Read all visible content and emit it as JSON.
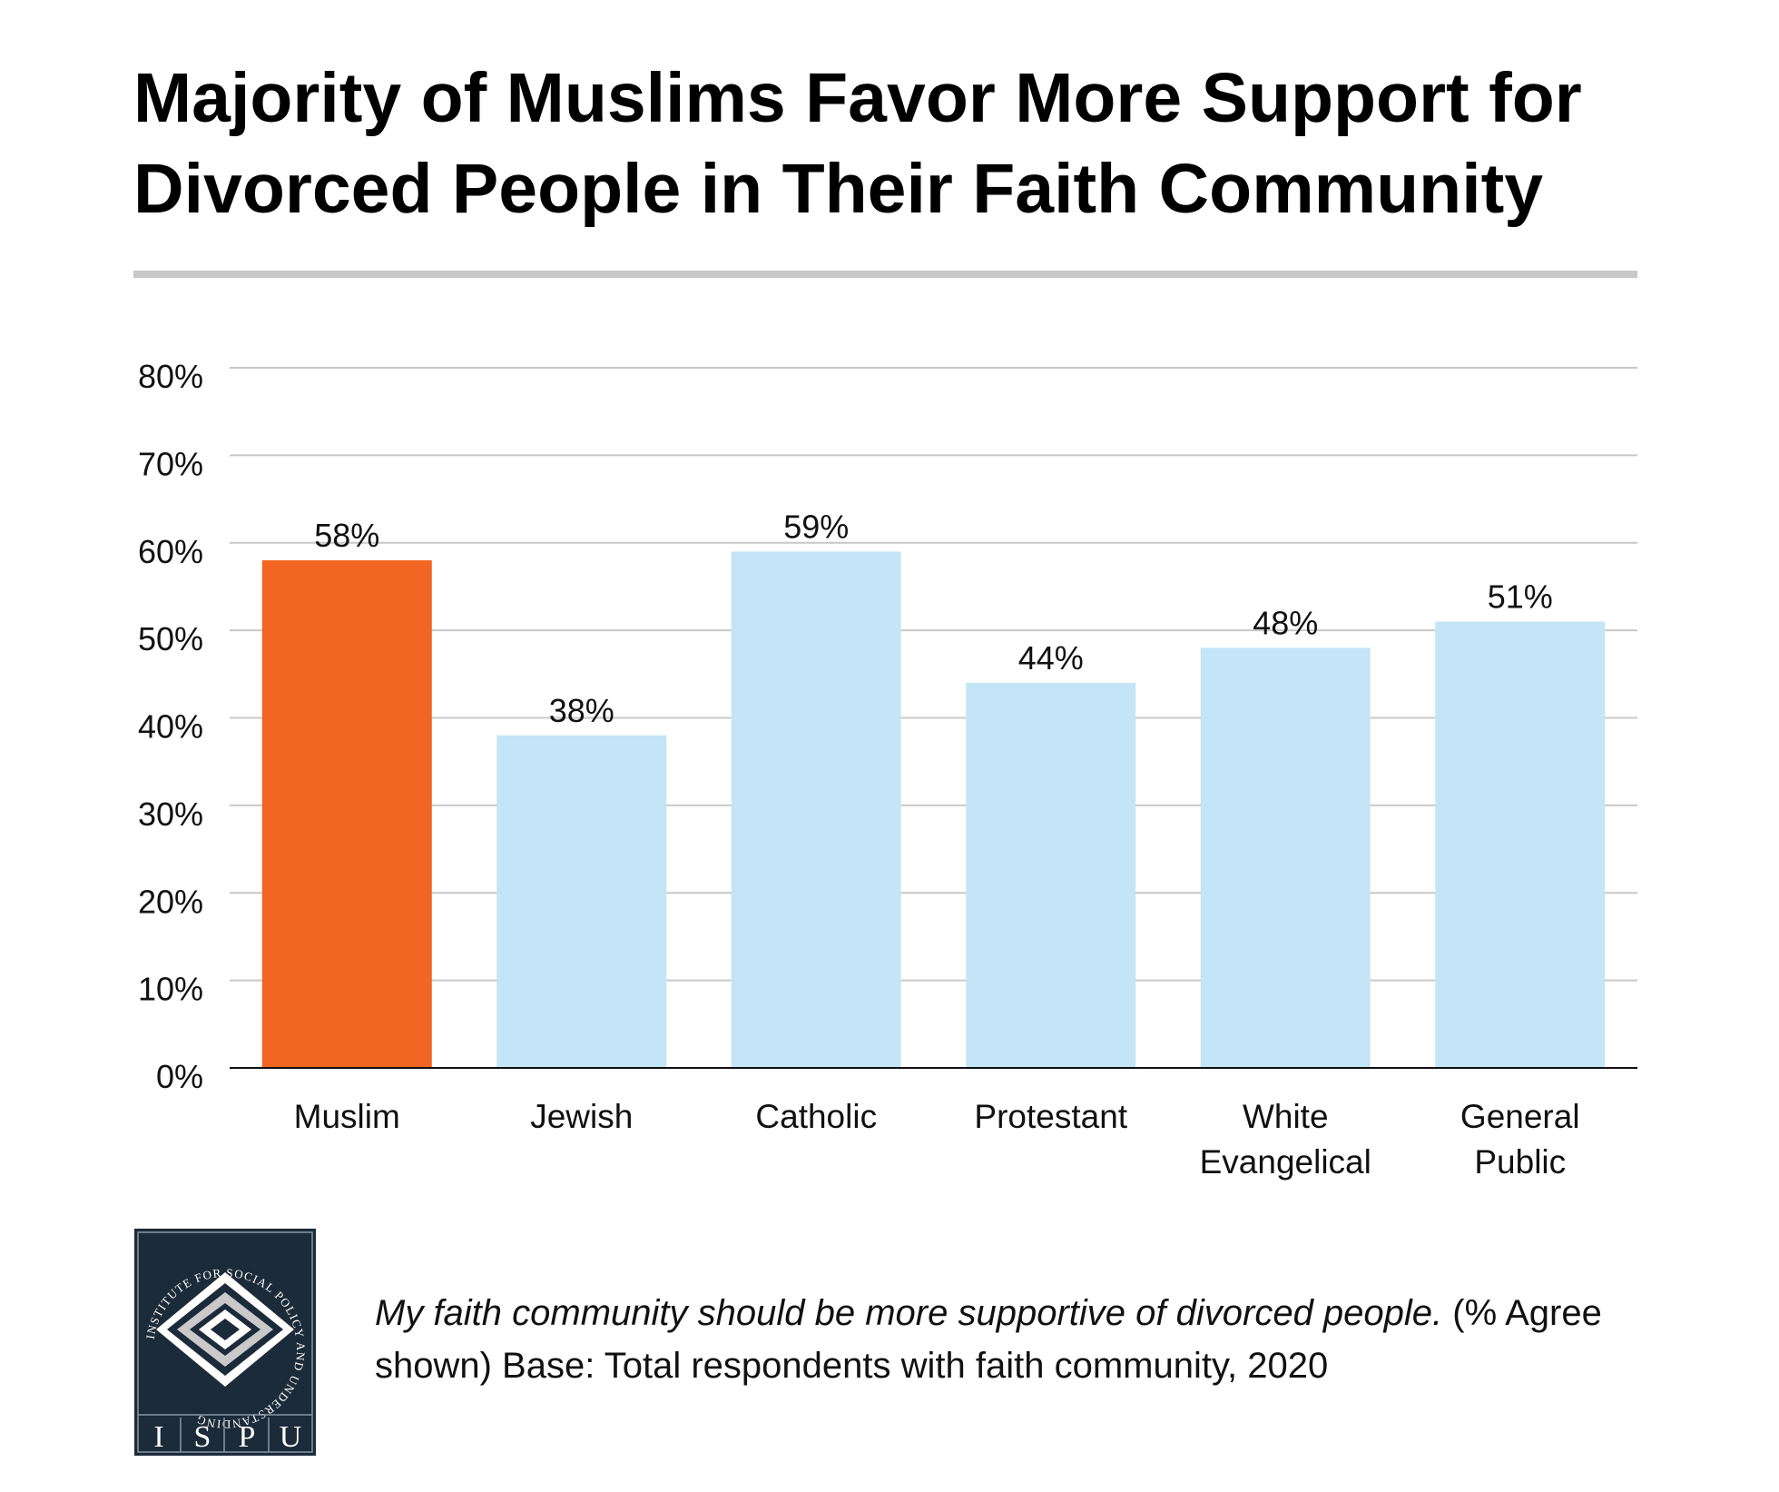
{
  "title": "Majority of Muslims Favor More Support for Divorced People in Their Faith Community",
  "chart_data": {
    "type": "bar",
    "title": "Majority of Muslims Favor More Support for Divorced People in Their Faith Community",
    "categories": [
      [
        "Muslim"
      ],
      [
        "Jewish"
      ],
      [
        "Catholic"
      ],
      [
        "Protestant"
      ],
      [
        "White",
        "Evangelical"
      ],
      [
        "General",
        "Public"
      ]
    ],
    "values": [
      58,
      38,
      59,
      44,
      48,
      51
    ],
    "value_labels": [
      "58%",
      "38%",
      "59%",
      "44%",
      "48%",
      "51%"
    ],
    "colors": [
      "#f26522",
      "#c3e5f7",
      "#c3e5f7",
      "#c3e5f7",
      "#c3e5f7",
      "#c3e5f7"
    ],
    "ylim": [
      0,
      80
    ],
    "yticks": [
      0,
      10,
      20,
      30,
      40,
      50,
      60,
      70,
      80
    ],
    "ytick_labels": [
      "0%",
      "10%",
      "20%",
      "30%",
      "40%",
      "50%",
      "60%",
      "70%",
      "80%"
    ],
    "xlabel": "",
    "ylabel": "",
    "grid": true,
    "legend": "none"
  },
  "caption": {
    "question": "My faith community should be more supportive of divorced people.",
    "note": "(% Agree shown) Base: Total respondents with faith community, 2020"
  },
  "logo": {
    "ring_text": "INSTITUTE FOR SOCIAL POLICY AND UNDERSTANDING",
    "letters": [
      "I",
      "S",
      "P",
      "U"
    ],
    "background": "#1c2b3a"
  }
}
